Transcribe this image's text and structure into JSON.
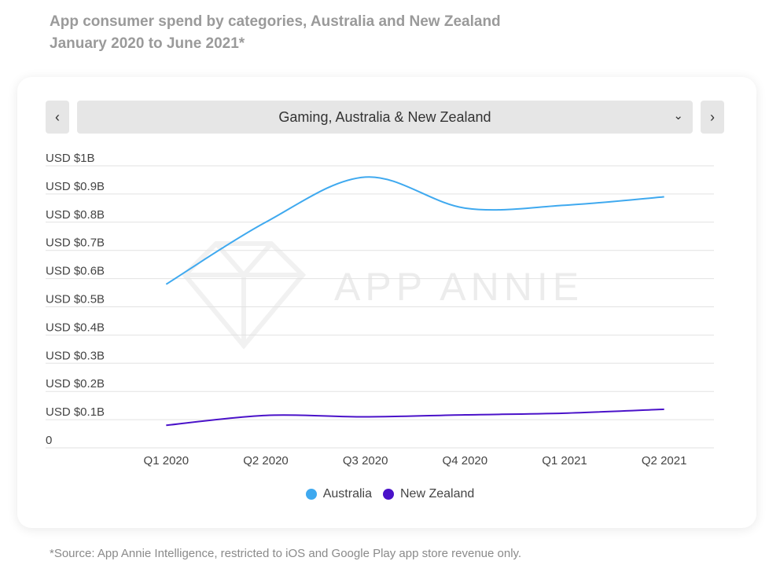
{
  "header": {
    "title_line1": "App consumer spend by categories, Australia and New Zealand",
    "title_line2": "January 2020 to June 2021*"
  },
  "selector": {
    "prev": "‹",
    "next": "›",
    "value": "Gaming, Australia & New Zealand",
    "chevron": "⌄"
  },
  "watermark": "APP ANNIE",
  "footnote": "*Source: App Annie Intelligence, restricted to iOS and Google Play app store revenue only.",
  "chart_data": {
    "type": "line",
    "title": "Gaming, Australia & New Zealand",
    "categories": [
      "Q1 2020",
      "Q2 2020",
      "Q3 2020",
      "Q4 2020",
      "Q1 2021",
      "Q2 2021"
    ],
    "yticks": [
      0,
      0.1,
      0.2,
      0.3,
      0.4,
      0.5,
      0.6,
      0.7,
      0.8,
      0.9,
      1.0
    ],
    "ytick_labels": [
      "0",
      "USD $0.1B",
      "USD $0.2B",
      "USD $0.3B",
      "USD $0.4B",
      "USD $0.5B",
      "USD $0.6B",
      "USD $0.7B",
      "USD $0.8B",
      "USD $0.9B",
      "USD $1B"
    ],
    "ylim": [
      0,
      1.0
    ],
    "yunit": "USD billions",
    "grid": true,
    "legend_position": "bottom",
    "series": [
      {
        "name": "Australia",
        "color": "#3fa9ef",
        "values": [
          0.58,
          0.8,
          0.96,
          0.85,
          0.86,
          0.89
        ]
      },
      {
        "name": "New Zealand",
        "color": "#4a12c9",
        "values": [
          0.08,
          0.115,
          0.11,
          0.117,
          0.123,
          0.137
        ]
      }
    ]
  }
}
